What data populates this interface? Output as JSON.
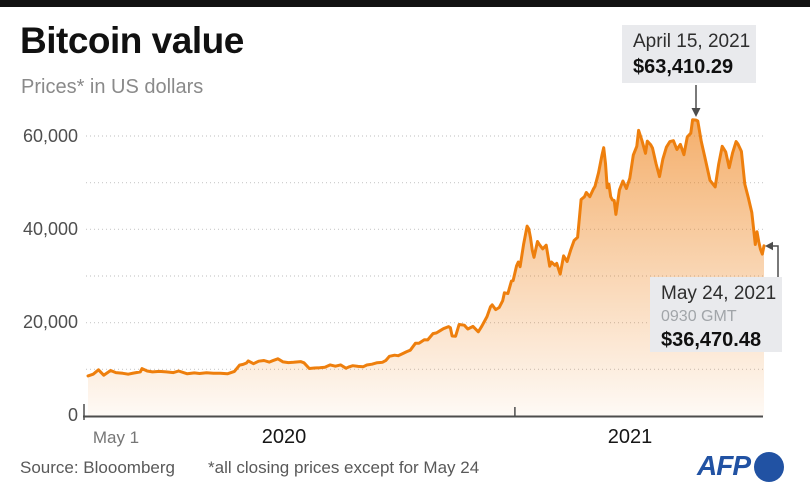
{
  "header": {
    "title": "Bitcoin value",
    "subtitle": "Prices* in US dollars"
  },
  "chart_data": {
    "type": "area",
    "title": "Bitcoin value",
    "ylabel": "Prices* in US dollars",
    "line_color": "#ee7f0d",
    "fill_color": "#ed7d10",
    "ylim": [
      0,
      65000
    ],
    "x_range": {
      "start_label": "May 1",
      "start": "2020-05-01",
      "end": "2021-05-24",
      "days": 388
    },
    "y_gridlines": [
      10000,
      20000,
      30000,
      40000,
      50000,
      60000
    ],
    "y_labels": [
      {
        "value": 60000,
        "label": "60,000"
      },
      {
        "value": 40000,
        "label": "40,000"
      },
      {
        "value": 20000,
        "label": "20,000"
      },
      {
        "value": 0,
        "label": "0"
      }
    ],
    "x_ticks": [
      {
        "label": "May 1"
      },
      {
        "label": "2020"
      },
      {
        "label": "2021"
      }
    ],
    "series": [
      {
        "name": "Bitcoin price in US dollars",
        "points": [
          [
            0,
            8600
          ],
          [
            3,
            8950
          ],
          [
            6,
            9900
          ],
          [
            9,
            8750
          ],
          [
            13,
            9750
          ],
          [
            16,
            9300
          ],
          [
            20,
            9150
          ],
          [
            23,
            8950
          ],
          [
            26,
            9200
          ],
          [
            30,
            9450
          ],
          [
            31,
            10150
          ],
          [
            34,
            9650
          ],
          [
            37,
            9450
          ],
          [
            41,
            9550
          ],
          [
            45,
            9450
          ],
          [
            49,
            9300
          ],
          [
            52,
            9650
          ],
          [
            57,
            9050
          ],
          [
            61,
            9230
          ],
          [
            64,
            9100
          ],
          [
            68,
            9250
          ],
          [
            72,
            9150
          ],
          [
            76,
            9150
          ],
          [
            80,
            9050
          ],
          [
            84,
            9550
          ],
          [
            87,
            10900
          ],
          [
            89,
            11050
          ],
          [
            91,
            11350
          ],
          [
            92,
            11800
          ],
          [
            95,
            11200
          ],
          [
            98,
            11750
          ],
          [
            101,
            11900
          ],
          [
            104,
            11550
          ],
          [
            106,
            11850
          ],
          [
            109,
            12250
          ],
          [
            112,
            11600
          ],
          [
            115,
            11450
          ],
          [
            118,
            11500
          ],
          [
            122,
            11650
          ],
          [
            124,
            11400
          ],
          [
            127,
            10170
          ],
          [
            130,
            10280
          ],
          [
            133,
            10340
          ],
          [
            136,
            10450
          ],
          [
            139,
            10950
          ],
          [
            142,
            10680
          ],
          [
            145,
            10950
          ],
          [
            148,
            10250
          ],
          [
            150,
            10550
          ],
          [
            152,
            10780
          ],
          [
            155,
            10620
          ],
          [
            158,
            10570
          ],
          [
            160,
            10920
          ],
          [
            163,
            11100
          ],
          [
            166,
            11420
          ],
          [
            169,
            11510
          ],
          [
            171,
            11920
          ],
          [
            173,
            12800
          ],
          [
            176,
            13030
          ],
          [
            178,
            12930
          ],
          [
            180,
            13270
          ],
          [
            183,
            13800
          ],
          [
            185,
            14100
          ],
          [
            188,
            15600
          ],
          [
            190,
            15580
          ],
          [
            193,
            16320
          ],
          [
            195,
            16300
          ],
          [
            198,
            17650
          ],
          [
            200,
            17800
          ],
          [
            202,
            18250
          ],
          [
            204,
            18700
          ],
          [
            207,
            19150
          ],
          [
            208,
            18900
          ],
          [
            209,
            17150
          ],
          [
            211,
            17100
          ],
          [
            213,
            19600
          ],
          [
            216,
            19450
          ],
          [
            218,
            18650
          ],
          [
            221,
            19200
          ],
          [
            224,
            18050
          ],
          [
            226,
            19250
          ],
          [
            229,
            21300
          ],
          [
            231,
            23400
          ],
          [
            232,
            23800
          ],
          [
            234,
            22800
          ],
          [
            236,
            23250
          ],
          [
            238,
            24700
          ],
          [
            239,
            26400
          ],
          [
            241,
            26250
          ],
          [
            243,
            28900
          ],
          [
            244,
            29000
          ],
          [
            246,
            32200
          ],
          [
            247,
            33000
          ],
          [
            248,
            32000
          ],
          [
            250,
            36800
          ],
          [
            252,
            40700
          ],
          [
            253,
            40100
          ],
          [
            254,
            38200
          ],
          [
            255,
            35500
          ],
          [
            256,
            34000
          ],
          [
            258,
            37400
          ],
          [
            259,
            36800
          ],
          [
            261,
            35800
          ],
          [
            263,
            36600
          ],
          [
            265,
            32100
          ],
          [
            266,
            33000
          ],
          [
            268,
            32300
          ],
          [
            269,
            32700
          ],
          [
            271,
            30400
          ],
          [
            273,
            34300
          ],
          [
            275,
            33100
          ],
          [
            277,
            35500
          ],
          [
            279,
            37600
          ],
          [
            281,
            38300
          ],
          [
            283,
            46400
          ],
          [
            285,
            47000
          ],
          [
            286,
            47900
          ],
          [
            288,
            47000
          ],
          [
            290,
            48600
          ],
          [
            291,
            49200
          ],
          [
            293,
            52100
          ],
          [
            295,
            55900
          ],
          [
            296,
            57500
          ],
          [
            297,
            54100
          ],
          [
            298,
            48900
          ],
          [
            299,
            49700
          ],
          [
            300,
            47000
          ],
          [
            301,
            46300
          ],
          [
            302,
            46200
          ],
          [
            303,
            43200
          ],
          [
            305,
            48400
          ],
          [
            307,
            50350
          ],
          [
            309,
            48750
          ],
          [
            311,
            50950
          ],
          [
            313,
            55900
          ],
          [
            315,
            57800
          ],
          [
            316,
            61200
          ],
          [
            318,
            59000
          ],
          [
            320,
            56300
          ],
          [
            321,
            58900
          ],
          [
            323,
            58100
          ],
          [
            324,
            57400
          ],
          [
            326,
            54100
          ],
          [
            328,
            51300
          ],
          [
            330,
            55100
          ],
          [
            332,
            57600
          ],
          [
            334,
            58800
          ],
          [
            336,
            59000
          ],
          [
            338,
            57100
          ],
          [
            340,
            58200
          ],
          [
            342,
            56000
          ],
          [
            344,
            59800
          ],
          [
            346,
            60600
          ],
          [
            347,
            63500
          ],
          [
            349,
            63410
          ],
          [
            350,
            63200
          ],
          [
            352,
            58800
          ],
          [
            354,
            55500
          ],
          [
            357,
            50500
          ],
          [
            360,
            49100
          ],
          [
            362,
            54000
          ],
          [
            364,
            57800
          ],
          [
            366,
            56600
          ],
          [
            368,
            53200
          ],
          [
            370,
            56400
          ],
          [
            372,
            58800
          ],
          [
            373,
            58300
          ],
          [
            375,
            56700
          ],
          [
            377,
            49700
          ],
          [
            379,
            46800
          ],
          [
            381,
            43600
          ],
          [
            383,
            36750
          ],
          [
            384,
            39500
          ],
          [
            385,
            37300
          ],
          [
            386,
            35700
          ],
          [
            387,
            34700
          ],
          [
            388,
            36470.48
          ]
        ]
      }
    ],
    "annotations": [
      {
        "date": "April 15, 2021",
        "price": "$63,410.29"
      },
      {
        "date": "May 24, 2021",
        "time": "0930 GMT",
        "price": "$36,470.48"
      }
    ]
  },
  "footer": {
    "source": "Source: Blooomberg",
    "note": "*all closing prices except for May 24",
    "logo_text": "AFP"
  }
}
